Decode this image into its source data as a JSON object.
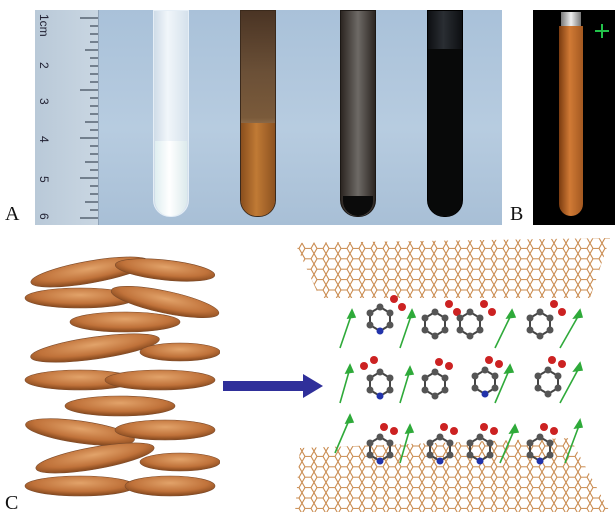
{
  "labels": {
    "panel_a": "A",
    "panel_b": "B",
    "panel_c": "C"
  },
  "ruler": {
    "marks": [
      "1cm",
      "2",
      "3",
      "4",
      "5",
      "6"
    ]
  },
  "colors": {
    "ruler_bg": "#c4d2df",
    "tube_glass": "#dfe9f1",
    "orange": "#b8692d",
    "ellipse": "#c77a3f",
    "arrow_blue": "#2f2f9a",
    "lattice": "#c98a4e",
    "bond_green": "#2faa3a",
    "carbon": "#555555",
    "oxygen": "#cc2222",
    "nitrogen": "#2233aa"
  },
  "icons": {
    "transition_arrow": "right-arrow-icon",
    "green_marker": "plus-arrow-icon"
  }
}
